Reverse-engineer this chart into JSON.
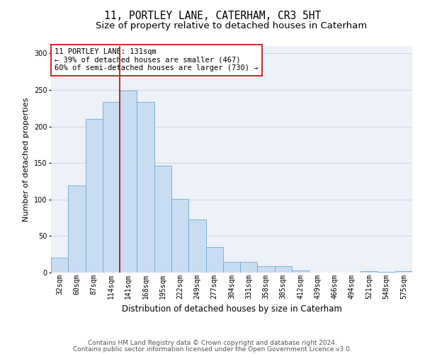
{
  "title1": "11, PORTLEY LANE, CATERHAM, CR3 5HT",
  "title2": "Size of property relative to detached houses in Caterham",
  "xlabel": "Distribution of detached houses by size in Caterham",
  "ylabel": "Number of detached properties",
  "categories": [
    "32sqm",
    "60sqm",
    "87sqm",
    "114sqm",
    "141sqm",
    "168sqm",
    "195sqm",
    "222sqm",
    "249sqm",
    "277sqm",
    "304sqm",
    "331sqm",
    "358sqm",
    "385sqm",
    "412sqm",
    "439sqm",
    "466sqm",
    "494sqm",
    "521sqm",
    "548sqm",
    "575sqm"
  ],
  "values": [
    20,
    119,
    210,
    233,
    249,
    233,
    146,
    101,
    73,
    35,
    15,
    15,
    9,
    9,
    3,
    0,
    0,
    0,
    2,
    1,
    2
  ],
  "bar_color": "#c9ddf2",
  "bar_edge_color": "#6aaad4",
  "vline_color": "#cc0000",
  "vline_pos": 4.0,
  "annotation_text": "11 PORTLEY LANE: 131sqm\n← 39% of detached houses are smaller (467)\n60% of semi-detached houses are larger (730) →",
  "annotation_box_facecolor": "#ffffff",
  "annotation_box_edgecolor": "#cc0000",
  "grid_color": "#cdd5e5",
  "background_color": "#edf1f8",
  "footer1": "Contains HM Land Registry data © Crown copyright and database right 2024.",
  "footer2": "Contains public sector information licensed under the Open Government Licence v3.0.",
  "ylim_max": 310,
  "title1_fontsize": 10.5,
  "title2_fontsize": 9.5,
  "xlabel_fontsize": 8.5,
  "ylabel_fontsize": 8,
  "tick_fontsize": 7,
  "annotation_fontsize": 7.5,
  "footer_fontsize": 6.5
}
